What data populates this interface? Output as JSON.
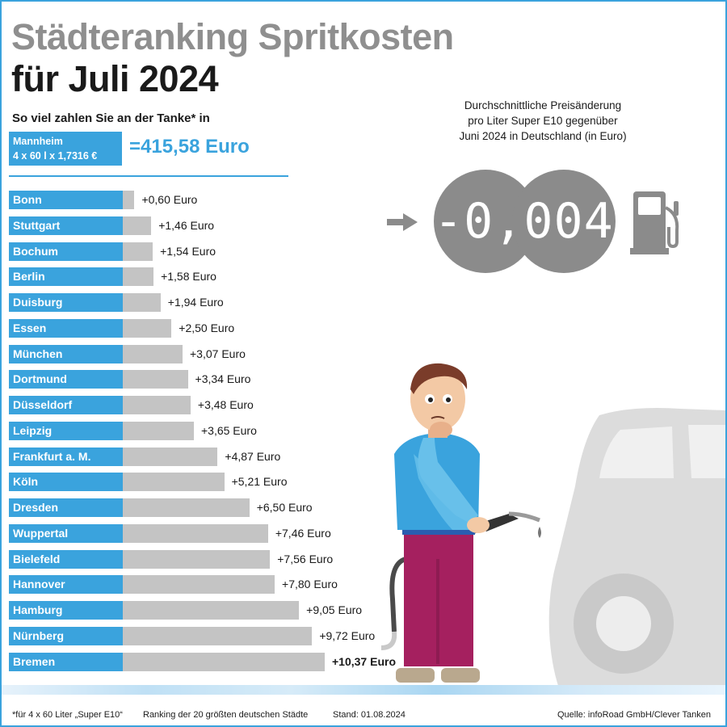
{
  "title_line1": "Städteranking Spritkosten",
  "title_line2": "für Juli 2024",
  "subtitle": "So viel zahlen Sie an der Tanke* in",
  "reference": {
    "city": "Mannheim",
    "formula": "4 x 60 l x 1,7316 €",
    "total": "=415,58 Euro"
  },
  "average_change": {
    "text_lines": [
      "Durchschnittliche Preisänderung",
      "pro Liter Super E10 gegenüber",
      "Juni 2024 in Deutschland (in Euro)"
    ],
    "value": "-0,0046"
  },
  "chart_data": {
    "type": "bar",
    "orientation": "horizontal",
    "categories": [
      "Bonn",
      "Stuttgart",
      "Bochum",
      "Berlin",
      "Duisburg",
      "Essen",
      "München",
      "Dortmund",
      "Düsseldorf",
      "Leipzig",
      "Frankfurt a. M.",
      "Köln",
      "Dresden",
      "Wuppertal",
      "Bielefeld",
      "Hannover",
      "Hamburg",
      "Nürnberg",
      "Bremen"
    ],
    "values": [
      0.6,
      1.46,
      1.54,
      1.58,
      1.94,
      2.5,
      3.07,
      3.34,
      3.48,
      3.65,
      4.87,
      5.21,
      6.5,
      7.46,
      7.56,
      7.8,
      9.05,
      9.72,
      10.37
    ],
    "value_labels": [
      "+0,60 Euro",
      "+1,46 Euro",
      "+1,54 Euro",
      "+1,58 Euro",
      "+1,94 Euro",
      "+2,50 Euro",
      "+3,07 Euro",
      "+3,34 Euro",
      "+3,48 Euro",
      "+3,65 Euro",
      "+4,87 Euro",
      "+5,21 Euro",
      "+6,50 Euro",
      "+7,46 Euro",
      "+7,56 Euro",
      "+7,80 Euro",
      "+9,05 Euro",
      "+9,72 Euro",
      "+10,37 Euro"
    ],
    "highlighted": "Bremen",
    "xlim": [
      0,
      10.37
    ],
    "grid": false
  },
  "footer": {
    "note": "*für 4 x 60 Liter „Super E10“",
    "ranking": "Ranking der 20 größten deutschen Städte",
    "date": "Stand: 01.08.2024",
    "source": "Quelle: infoRoad GmbH/Clever Tanken"
  },
  "colors": {
    "accent": "#3aa3dd",
    "bar": "#c4c4c4",
    "circle": "#8b8b8b",
    "title_gray": "#8f8f8f"
  }
}
